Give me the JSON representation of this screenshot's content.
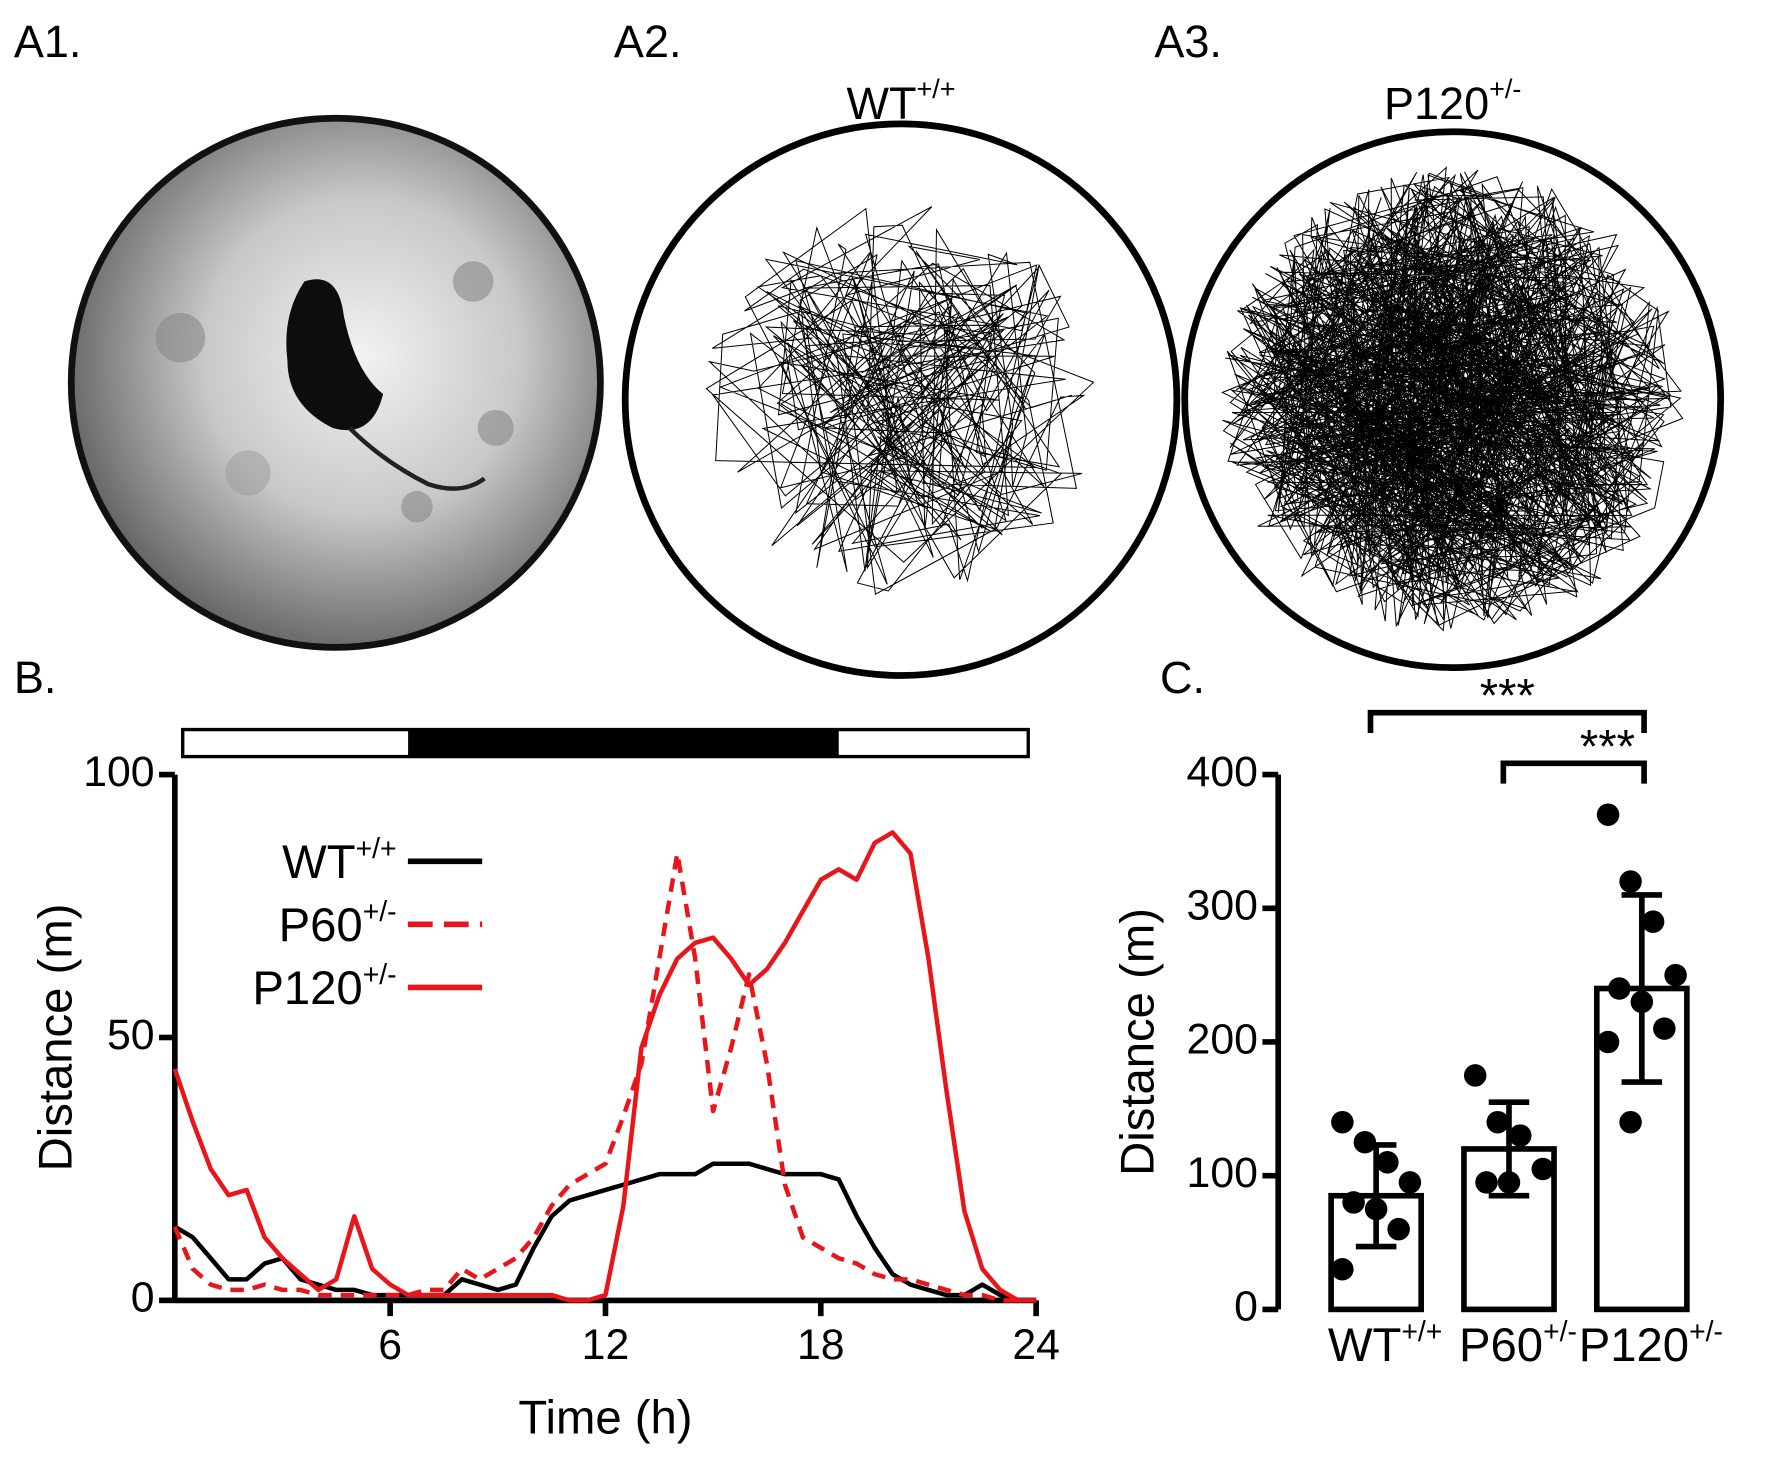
{
  "panel_labels": [
    "A1.",
    "A2.",
    "A3.",
    "B.",
    "C."
  ],
  "trajectory_titles": [
    "WT+/+",
    "P120+/-"
  ],
  "chart_data": [
    {
      "type": "line",
      "xlabel": "Time (h)",
      "ylabel": "Distance (m)",
      "xlim": [
        0,
        24
      ],
      "xticks": [
        6,
        12,
        18,
        24
      ],
      "ylim": [
        0,
        100
      ],
      "yticks": [
        0,
        50,
        100
      ],
      "dark_period": [
        6.5,
        18.5
      ],
      "x": [
        0,
        0.5,
        1,
        1.5,
        2,
        2.5,
        3,
        3.5,
        4,
        4.5,
        5,
        5.5,
        6,
        6.5,
        7,
        7.5,
        8,
        8.5,
        9,
        9.5,
        10,
        10.5,
        11,
        11.5,
        12,
        12.5,
        13,
        13.5,
        14,
        14.5,
        15,
        15.5,
        16,
        16.5,
        17,
        17.5,
        18,
        18.5,
        19,
        19.5,
        20,
        20.5,
        21,
        21.5,
        22,
        22.5,
        23,
        23.5,
        24
      ],
      "series": [
        {
          "name": "WT+/+",
          "color": "#000000",
          "dash": false,
          "values": [
            14,
            12,
            8,
            4,
            4,
            7,
            8,
            4,
            3,
            2,
            2,
            1,
            1,
            1,
            1,
            1,
            4,
            3,
            2,
            3,
            10,
            16,
            19,
            20,
            21,
            22,
            23,
            24,
            24,
            24,
            26,
            26,
            26,
            25,
            24,
            24,
            24,
            23,
            16,
            10,
            5,
            3,
            2,
            1,
            1,
            3,
            1,
            0,
            0
          ]
        },
        {
          "name": "P60+/-",
          "color": "#e8161b",
          "dash": true,
          "values": [
            14,
            6,
            3,
            2,
            2,
            3,
            2,
            2,
            1,
            1,
            1,
            1,
            1,
            1,
            2,
            2,
            6,
            4,
            6,
            8,
            12,
            18,
            22,
            24,
            26,
            35,
            45,
            65,
            85,
            65,
            36,
            48,
            62,
            45,
            22,
            12,
            10,
            8,
            7,
            5,
            4,
            4,
            3,
            2,
            1,
            1,
            0,
            0,
            0
          ]
        },
        {
          "name": "P120+/-",
          "color": "#e8161b",
          "dash": false,
          "values": [
            44,
            34,
            25,
            20,
            21,
            12,
            8,
            5,
            2,
            4,
            16,
            6,
            3,
            1,
            1,
            1,
            1,
            1,
            1,
            1,
            1,
            1,
            0,
            0,
            1,
            18,
            48,
            58,
            65,
            68,
            69,
            65,
            60,
            63,
            68,
            74,
            80,
            82,
            80,
            87,
            89,
            85,
            65,
            40,
            17,
            6,
            2,
            0,
            0
          ]
        }
      ]
    },
    {
      "type": "bar",
      "ylabel": "Distance (m)",
      "categories": [
        "WT+/+",
        "P60+/-",
        "P120+/-"
      ],
      "values": [
        85,
        120,
        240
      ],
      "errors": [
        38,
        35,
        70
      ],
      "points": [
        [
          140,
          125,
          110,
          95,
          80,
          75,
          60,
          30
        ],
        [
          175,
          140,
          130,
          105,
          95,
          95
        ],
        [
          370,
          320,
          290,
          250,
          240,
          230,
          210,
          200,
          140
        ]
      ],
      "ylim": [
        0,
        400
      ],
      "yticks": [
        0,
        100,
        200,
        300,
        400
      ],
      "annotations": [
        {
          "text": "***",
          "from": 0,
          "to": 2
        },
        {
          "text": "***",
          "from": 1,
          "to": 2
        }
      ]
    }
  ]
}
